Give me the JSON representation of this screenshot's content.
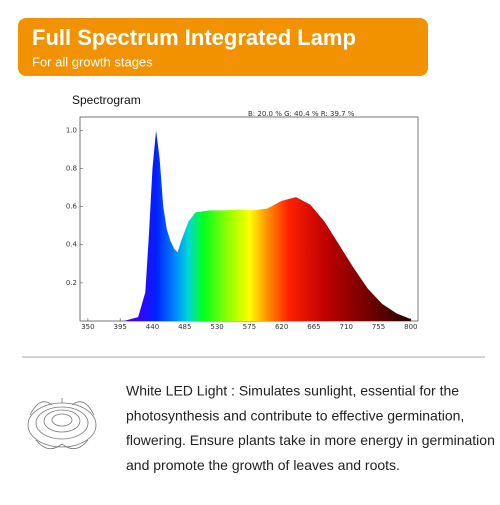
{
  "header": {
    "title": "Full Spectrum Integrated Lamp",
    "subtitle": "For all growth stages"
  },
  "chart_data": {
    "type": "area",
    "title": "Spectrogram",
    "annotation": "B: 20.0 %  G: 40.4 %  R: 39.7 %",
    "x": [
      380,
      400,
      420,
      430,
      435,
      440,
      445,
      450,
      455,
      460,
      465,
      470,
      475,
      480,
      490,
      500,
      520,
      540,
      560,
      580,
      600,
      620,
      640,
      660,
      680,
      700,
      720,
      740,
      760,
      780,
      800
    ],
    "values": [
      0,
      0,
      0.02,
      0.15,
      0.45,
      0.8,
      1.0,
      0.85,
      0.6,
      0.48,
      0.42,
      0.38,
      0.36,
      0.42,
      0.52,
      0.57,
      0.58,
      0.58,
      0.585,
      0.58,
      0.59,
      0.63,
      0.65,
      0.61,
      0.52,
      0.4,
      0.28,
      0.17,
      0.09,
      0.04,
      0.01
    ],
    "xlim": [
      339,
      810
    ],
    "ylim": [
      0,
      1.07
    ],
    "xticks": [
      350,
      395,
      440,
      485,
      530,
      575,
      620,
      665,
      710,
      755,
      800
    ],
    "yticks": [
      0.2,
      0.4,
      0.6,
      0.8,
      {
        "value": 1,
        "label": "1.0"
      }
    ]
  },
  "description": {
    "lines": [
      "White LED Light :  Simulates sunlight, essential for the",
      "photosynthesis and contribute to effective germination,",
      "flowering. Ensure plants take in more energy in germination",
      "and promote the growth of leaves and roots."
    ]
  }
}
